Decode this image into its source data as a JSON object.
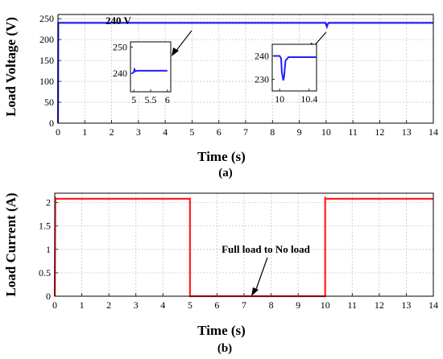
{
  "chart_data": [
    {
      "type": "line",
      "caption": "(a)",
      "xlabel": "Time (s)",
      "ylabel": "Load Voltage (V)",
      "xlim": [
        0,
        14
      ],
      "ylim": [
        0,
        260
      ],
      "xticks": [
        "0",
        "1",
        "2",
        "3",
        "4",
        "5",
        "6",
        "7",
        "8",
        "9",
        "10",
        "11",
        "12",
        "13",
        "14"
      ],
      "yticks": [
        "0",
        "50",
        "100",
        "150",
        "200",
        "250"
      ],
      "grid": true,
      "color": "#1f1fff",
      "series": [
        {
          "x": [
            0,
            0.01,
            0.03,
            9.98,
            10.0,
            10.03,
            10.06,
            10.1,
            14
          ],
          "y": [
            0,
            240,
            240,
            240,
            236,
            231,
            237,
            240,
            240
          ]
        }
      ],
      "annotation": {
        "text": "240 V",
        "x": 0.3,
        "y": 247
      },
      "insets": [
        {
          "xlim": [
            4.9,
            6.1
          ],
          "ylim": [
            233,
            252
          ],
          "xticks": [
            "5",
            "5.5",
            "6"
          ],
          "xtick_values": [
            5,
            5.5,
            6
          ],
          "yticks": [
            "240",
            "250"
          ],
          "ytick_values": [
            240,
            250
          ],
          "series": {
            "x": [
              4.95,
              5.0,
              5.02,
              5.05,
              5.1,
              6.0
            ],
            "y": [
              240,
              240.5,
              241.5,
              240.8,
              241,
              241
            ]
          }
        },
        {
          "xlim": [
            9.9,
            10.5
          ],
          "ylim": [
            225,
            245
          ],
          "xticks": [
            "10",
            "10.4"
          ],
          "xtick_values": [
            10,
            10.4
          ],
          "yticks": [
            "230",
            "240"
          ],
          "ytick_values": [
            230,
            240
          ],
          "series": {
            "x": [
              9.92,
              10.0,
              10.02,
              10.03,
              10.05,
              10.06,
              10.08,
              10.12,
              10.5
            ],
            "y": [
              240,
              240,
              239,
              233,
              229.5,
              231,
              238,
              239.5,
              239.5
            ]
          }
        }
      ]
    },
    {
      "type": "line",
      "caption": "(b)",
      "xlabel": "Time (s)",
      "ylabel": "Load Current (A)",
      "xlim": [
        0,
        14
      ],
      "ylim": [
        0,
        2.2
      ],
      "xticks": [
        "0",
        "1",
        "2",
        "3",
        "4",
        "5",
        "6",
        "7",
        "8",
        "9",
        "10",
        "11",
        "12",
        "13",
        "14"
      ],
      "yticks": [
        "0",
        "0.5",
        "1",
        "1.5",
        "2"
      ],
      "grid": true,
      "color": "#ff1f1f",
      "series": [
        {
          "x": [
            0,
            0.02,
            0.05,
            5.0,
            5.0,
            10.0,
            10.0,
            10.05,
            14
          ],
          "y": [
            0,
            2.1,
            2.08,
            2.08,
            0,
            0,
            2.1,
            2.08,
            2.08
          ]
        }
      ],
      "annotation": {
        "text": "Full load to No load"
      }
    }
  ]
}
